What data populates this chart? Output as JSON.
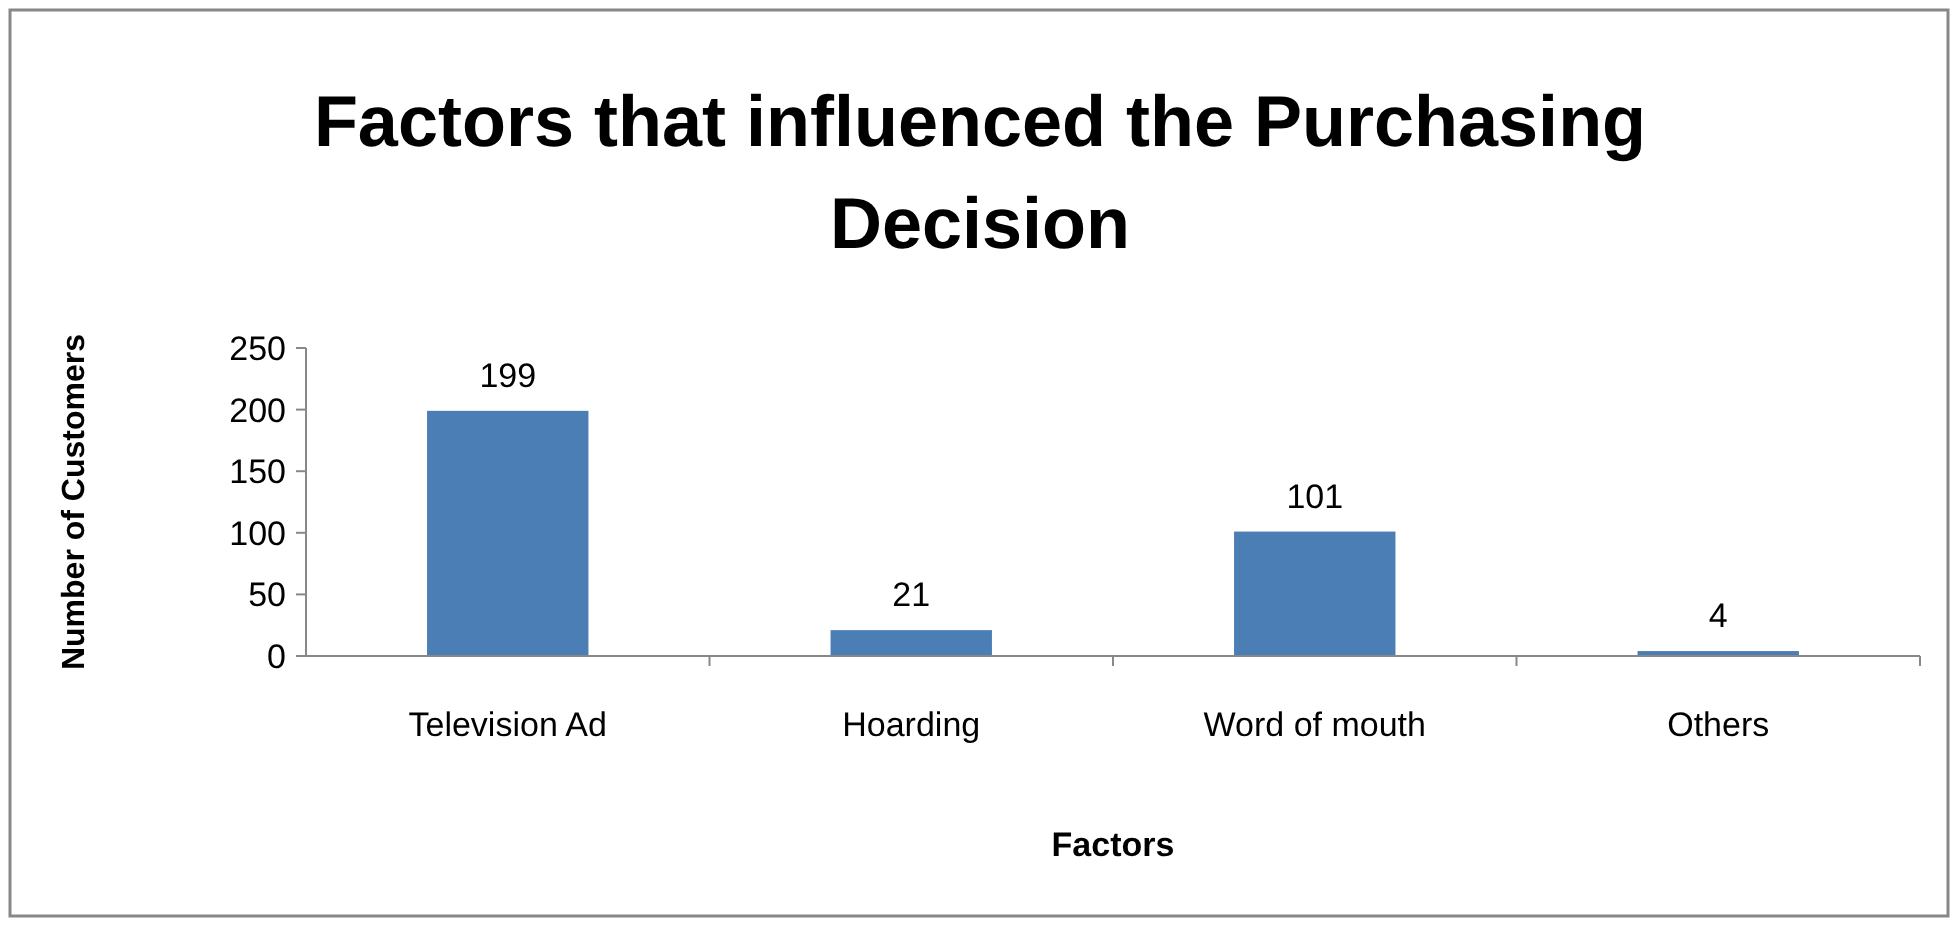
{
  "chart_data": {
    "type": "bar",
    "title": "Factors that influenced the Purchasing Decision",
    "xlabel": "Factors",
    "ylabel": "Number of Customers",
    "categories": [
      "Television Ad",
      "Hoarding",
      "Word of mouth",
      "Others"
    ],
    "values": [
      199,
      21,
      101,
      4
    ],
    "color": "#4a7eb4",
    "ylim": [
      0,
      250
    ],
    "yticks": [
      0,
      50,
      100,
      150,
      200,
      250
    ],
    "grid": false,
    "data_labels": true
  }
}
